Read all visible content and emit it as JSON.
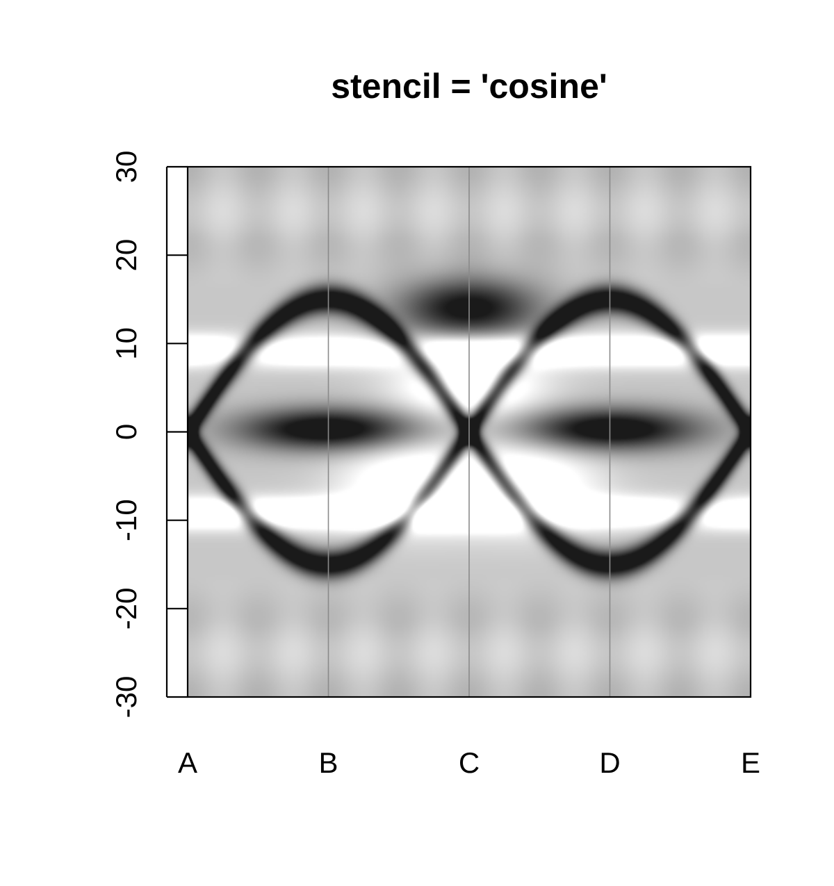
{
  "chart_data": {
    "type": "heatmap",
    "title": "stencil = 'cosine'",
    "xlabel": "",
    "ylabel": "",
    "x_categories": [
      "A",
      "B",
      "C",
      "D",
      "E"
    ],
    "x_range": [
      0,
      4
    ],
    "ylim": [
      -30,
      30
    ],
    "y_ticks": [
      -30,
      -20,
      -10,
      0,
      10,
      20,
      30
    ],
    "colormap": "grayscale",
    "colors": {
      "low": "#1a1a1a",
      "high": "#ffffff",
      "background": "#c8c8c8",
      "vertical_lines": "#8a8a8a"
    },
    "vertical_lines_at": [
      "B",
      "C",
      "D"
    ],
    "grid": false,
    "legend": "none"
  }
}
